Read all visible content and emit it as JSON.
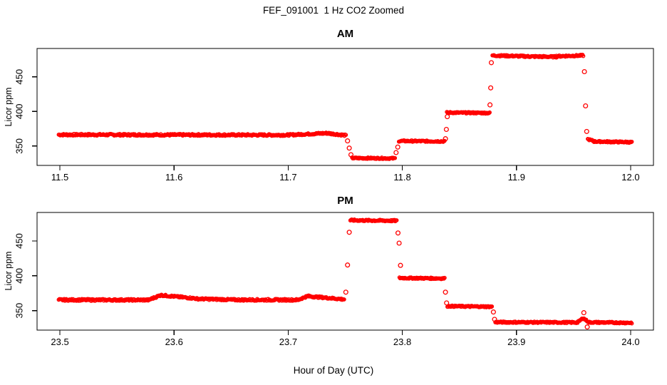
{
  "header": {
    "title": "FEF_091001  1 Hz CO2 Zoomed"
  },
  "colors": {
    "points": "#FF0000",
    "axis": "#000000",
    "background": "#FFFFFF"
  },
  "axis_labels": {
    "x": "Hour of Day (UTC)",
    "y": "Licor ppm"
  },
  "chart_data": [
    {
      "type": "scatter",
      "panel": "AM",
      "title": "AM",
      "xlabel": "Hour of Day (UTC)",
      "ylabel": "Licor ppm",
      "marker": "open-circle",
      "color": "#FF0000",
      "grid": false,
      "legend": null,
      "xlim": [
        11.48,
        12.02
      ],
      "ylim": [
        322,
        491
      ],
      "x_ticks": [
        11.5,
        11.6,
        11.7,
        11.8,
        11.9,
        12.0
      ],
      "x_tick_labels": [
        "11.5",
        "11.6",
        "11.7",
        "11.8",
        "11.9",
        "12.0"
      ],
      "y_ticks": [
        350,
        400,
        450
      ],
      "y_tick_labels": [
        "350",
        "400",
        "450"
      ],
      "segment_format": "[t_start_hr, t_end_hr, ppm_start, ppm_end, noise_ppm] — dense 1 Hz points along each linear segment",
      "segments": [
        [
          11.499,
          11.7,
          366.4,
          365.9,
          1.3
        ],
        [
          11.7,
          11.735,
          366.0,
          368.7,
          1.2
        ],
        [
          11.735,
          11.7505,
          368.4,
          365.4,
          1.2
        ],
        [
          11.756,
          11.7935,
          332.6,
          332.2,
          1.0
        ],
        [
          11.797,
          11.837,
          357.3,
          356.8,
          1.0
        ],
        [
          11.839,
          11.8765,
          398.4,
          397.8,
          1.0
        ],
        [
          11.879,
          11.91,
          480.9,
          479.6,
          1.1
        ],
        [
          11.91,
          11.935,
          479.5,
          479.0,
          1.1
        ],
        [
          11.935,
          11.9585,
          479.8,
          480.9,
          1.1
        ],
        [
          11.9625,
          11.968,
          359.8,
          357.2,
          1.0
        ],
        [
          11.968,
          12.001,
          356.6,
          355.6,
          1.0
        ]
      ],
      "transition_point_format": "[t_hr, ppm] — isolated circles during gas switches",
      "transition_points": [
        [
          11.752,
          357.5
        ],
        [
          11.7535,
          347.0
        ],
        [
          11.755,
          337.5
        ],
        [
          11.7945,
          340.5
        ],
        [
          11.796,
          348.5
        ],
        [
          11.8378,
          360.5
        ],
        [
          11.8386,
          374.0
        ],
        [
          11.8394,
          392.5
        ],
        [
          11.8768,
          409.5
        ],
        [
          11.8774,
          434.0
        ],
        [
          11.878,
          470.5
        ],
        [
          11.9595,
          457.5
        ],
        [
          11.9605,
          408.0
        ],
        [
          11.9615,
          371.0
        ]
      ]
    },
    {
      "type": "scatter",
      "panel": "PM",
      "title": "PM",
      "xlabel": "Hour of Day (UTC)",
      "ylabel": "Licor ppm",
      "marker": "open-circle",
      "color": "#FF0000",
      "grid": false,
      "legend": null,
      "xlim": [
        23.48,
        24.02
      ],
      "ylim": [
        322,
        491
      ],
      "x_ticks": [
        23.5,
        23.6,
        23.7,
        23.8,
        23.9,
        24.0
      ],
      "x_tick_labels": [
        "23.5",
        "23.6",
        "23.7",
        "23.8",
        "23.9",
        "24.0"
      ],
      "y_ticks": [
        350,
        400,
        450
      ],
      "y_tick_labels": [
        "350",
        "400",
        "450"
      ],
      "segment_format": "[t_start_hr, t_end_hr, ppm_start, ppm_end, noise_ppm] — dense 1 Hz points along each linear segment",
      "segments": [
        [
          23.499,
          23.578,
          365.4,
          365.3,
          1.3
        ],
        [
          23.578,
          23.589,
          365.6,
          372.6,
          1.2
        ],
        [
          23.589,
          23.62,
          372.1,
          367.3,
          1.2
        ],
        [
          23.62,
          23.65,
          367.0,
          365.7,
          1.2
        ],
        [
          23.65,
          23.709,
          365.5,
          365.4,
          1.3
        ],
        [
          23.709,
          23.7175,
          365.7,
          371.2,
          1.2
        ],
        [
          23.7175,
          23.749,
          370.7,
          366.2,
          1.2
        ],
        [
          23.7545,
          23.795,
          479.8,
          479.1,
          1.1
        ],
        [
          23.7975,
          23.837,
          396.9,
          396.2,
          1.0
        ],
        [
          23.8395,
          23.8785,
          356.4,
          355.6,
          1.0
        ],
        [
          23.8815,
          23.9535,
          333.4,
          333.0,
          1.0
        ],
        [
          23.9535,
          23.9585,
          333.2,
          339.4,
          1.0
        ],
        [
          23.9585,
          23.9635,
          339.0,
          333.4,
          1.0
        ],
        [
          23.9635,
          24.001,
          333.2,
          332.5,
          1.0
        ]
      ],
      "transition_point_format": "[t_hr, ppm] — isolated circles during gas switches",
      "transition_points": [
        [
          23.7505,
          376.5
        ],
        [
          23.752,
          415.5
        ],
        [
          23.7535,
          462.5
        ],
        [
          23.7962,
          461.5
        ],
        [
          23.7972,
          447.0
        ],
        [
          23.7984,
          415.0
        ],
        [
          23.8378,
          376.5
        ],
        [
          23.8388,
          361.0
        ],
        [
          23.8798,
          348.0
        ],
        [
          23.8808,
          337.5
        ],
        [
          23.959,
          347.0
        ],
        [
          23.962,
          326.5
        ]
      ]
    }
  ]
}
